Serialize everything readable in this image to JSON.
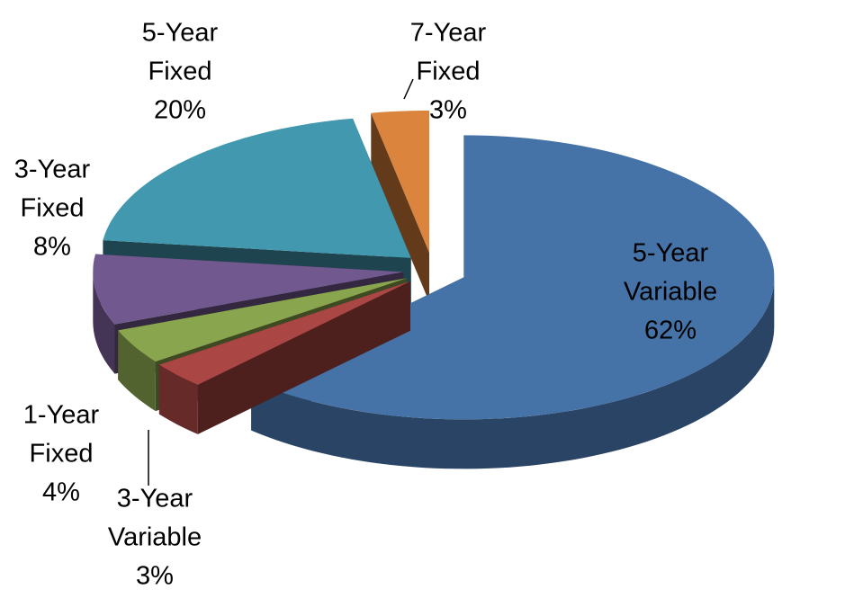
{
  "chart_data": {
    "type": "pie",
    "categories": [
      "5-Year Variable",
      "3-Year Variable",
      "1-Year Fixed",
      "3-Year Fixed",
      "5-Year Fixed",
      "7-Year Fixed"
    ],
    "values": [
      62,
      3,
      4,
      8,
      20,
      3
    ],
    "value_labels": [
      "62%",
      "3%",
      "4%",
      "8%",
      "20%",
      "3%"
    ],
    "colors": [
      "#4572a7",
      "#aa4643",
      "#89a54e",
      "#71588f",
      "#4198af",
      "#db843d"
    ]
  }
}
